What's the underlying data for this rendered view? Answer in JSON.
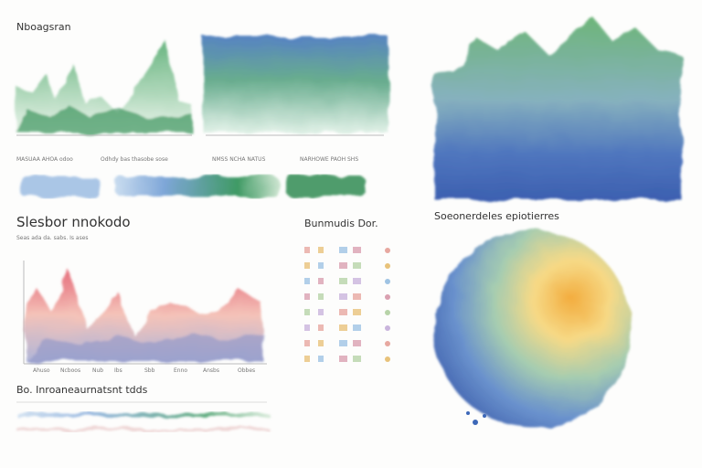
{
  "header": {
    "title": "Nboagsran",
    "top_labels": [
      "MASUAA AHOA odoo",
      "Odhdy bas thasobe sose",
      "NMSS NCHA NATUS",
      "NARHOWE PAOH SHS"
    ]
  },
  "middle": {
    "title": "Slesbor nnokodo",
    "subtitle": "Seas ada da. sabs. Is ases",
    "x_labels": [
      "Ahuso",
      "Ncboos",
      "Nub",
      "Ibs",
      "Sbb",
      "Enno",
      "Ansbs",
      "Obbes"
    ]
  },
  "legend": {
    "title": "Bunmudis Dor."
  },
  "right": {
    "title": "Soeonerdeles epiotierres"
  },
  "bottom": {
    "caption": "Bo. Inroaneaurnatsnt tdds"
  }
}
